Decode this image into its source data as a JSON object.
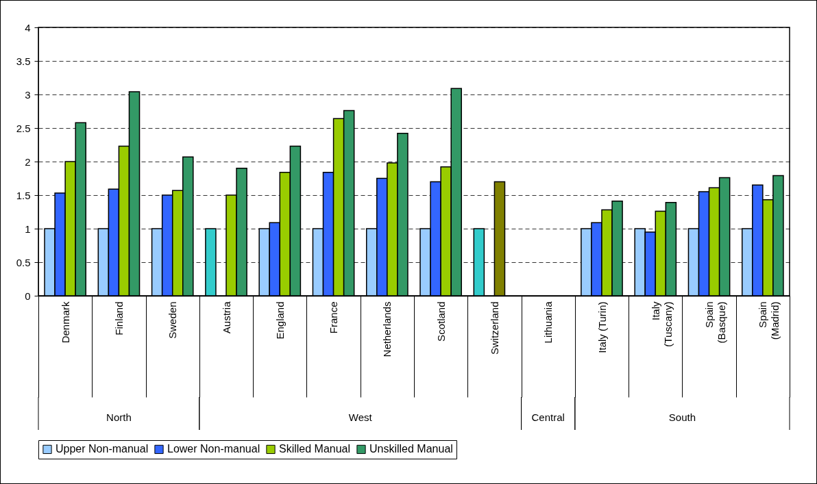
{
  "chart_data": {
    "type": "bar",
    "categories": [
      "Denmark",
      "Finland",
      "Sweden",
      "Austria",
      "England",
      "France",
      "Netherlands",
      "Scotland",
      "Switzerland",
      "Lithuania",
      "Italy (Turin)",
      "Italy (Tuscany)",
      "Spain (Basque)",
      "Spain (Madrid)"
    ],
    "series": [
      {
        "name": "Upper Non-manual",
        "color": "#99ccff",
        "colors": [
          "#99ccff",
          "#99ccff",
          "#99ccff",
          "#33cccc",
          "#99ccff",
          "#99ccff",
          "#99ccff",
          "#99ccff",
          "#33cccc",
          null,
          "#99ccff",
          "#99ccff",
          "#99ccff",
          "#99ccff"
        ],
        "values": [
          1,
          1,
          1,
          1,
          1,
          1,
          1,
          1,
          1,
          null,
          1,
          1,
          1,
          1
        ]
      },
      {
        "name": "Lower Non-manual",
        "color": "#3366ff",
        "values": [
          1.53,
          1.59,
          1.5,
          null,
          1.09,
          1.84,
          1.75,
          1.7,
          null,
          null,
          1.09,
          0.95,
          1.55,
          1.65
        ]
      },
      {
        "name": "Skilled Manual",
        "color": "#99cc00",
        "colors": [
          "#99cc00",
          "#99cc00",
          "#99cc00",
          "#99cc00",
          "#99cc00",
          "#99cc00",
          "#99cc00",
          "#99cc00",
          "#808000",
          null,
          "#99cc00",
          "#99cc00",
          "#99cc00",
          "#99cc00"
        ],
        "values": [
          2.0,
          2.23,
          1.57,
          1.5,
          1.84,
          2.64,
          1.98,
          1.92,
          1.7,
          null,
          1.28,
          1.26,
          1.61,
          1.43
        ]
      },
      {
        "name": "Unskilled Manual",
        "color": "#339966",
        "values": [
          2.58,
          3.04,
          2.07,
          1.9,
          2.23,
          2.76,
          2.42,
          3.09,
          null,
          null,
          1.41,
          1.39,
          1.76,
          1.79
        ]
      }
    ],
    "ylim": [
      0,
      4
    ],
    "yticks": [
      0,
      0.5,
      1,
      1.5,
      2,
      2.5,
      3,
      3.5,
      4
    ],
    "grid": "y",
    "legend": "bottom",
    "annotations": [
      "North",
      "West",
      "Central",
      "South"
    ]
  }
}
